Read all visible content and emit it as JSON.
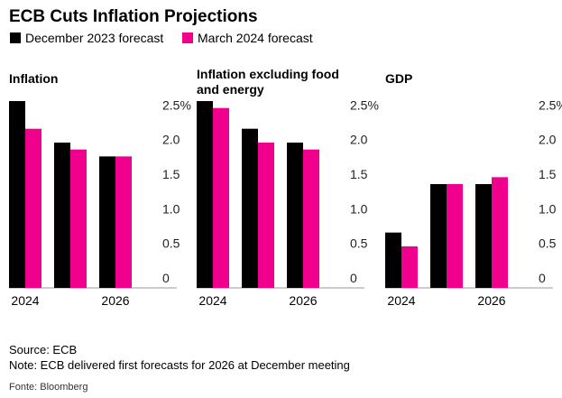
{
  "title": "ECB Cuts Inflation Projections",
  "source": "Source: ECB",
  "note": "Note: ECB delivered first forecasts for 2026 at December meeting",
  "credit": "Fonte: Bloomberg",
  "chart_data": [
    {
      "type": "bar",
      "title": "Inflation",
      "categories": [
        "2024",
        null,
        "2026"
      ],
      "series": [
        {
          "name": "December 2023 forecast",
          "color": "#000000",
          "values": [
            2.7,
            2.1,
            1.9
          ]
        },
        {
          "name": "March 2024 forecast",
          "color": "#f0008c",
          "values": [
            2.3,
            2.0,
            1.9
          ]
        }
      ],
      "ylim": [
        0,
        2.7
      ],
      "yticks": [
        0,
        0.5,
        {
          "value": 1,
          "label": "1.0"
        },
        1.5,
        {
          "value": 2,
          "label": "2.0"
        },
        {
          "value": 2.5,
          "label": "2.5%"
        }
      ]
    },
    {
      "type": "bar",
      "title": "Inflation excluding food and energy",
      "categories": [
        "2024",
        null,
        "2026"
      ],
      "series": [
        {
          "name": "December 2023 forecast",
          "color": "#000000",
          "values": [
            2.7,
            2.3,
            2.1
          ]
        },
        {
          "name": "March 2024 forecast",
          "color": "#f0008c",
          "values": [
            2.6,
            2.1,
            2.0
          ]
        }
      ],
      "ylim": [
        0,
        2.7
      ],
      "yticks": [
        0,
        0.5,
        {
          "value": 1,
          "label": "1.0"
        },
        1.5,
        {
          "value": 2,
          "label": "2.0"
        },
        {
          "value": 2.5,
          "label": "2.5%"
        }
      ]
    },
    {
      "type": "bar",
      "title": "GDP",
      "categories": [
        "2024",
        null,
        "2026"
      ],
      "series": [
        {
          "name": "December 2023 forecast",
          "color": "#000000",
          "values": [
            0.8,
            1.5,
            1.5
          ]
        },
        {
          "name": "March 2024 forecast",
          "color": "#f0008c",
          "values": [
            0.6,
            1.5,
            1.6
          ]
        }
      ],
      "ylim": [
        0,
        2.7
      ],
      "yticks": [
        0,
        0.5,
        {
          "value": 1,
          "label": "1.0"
        },
        1.5,
        {
          "value": 2,
          "label": "2.0"
        },
        {
          "value": 2.5,
          "label": "2.5%"
        }
      ]
    }
  ]
}
